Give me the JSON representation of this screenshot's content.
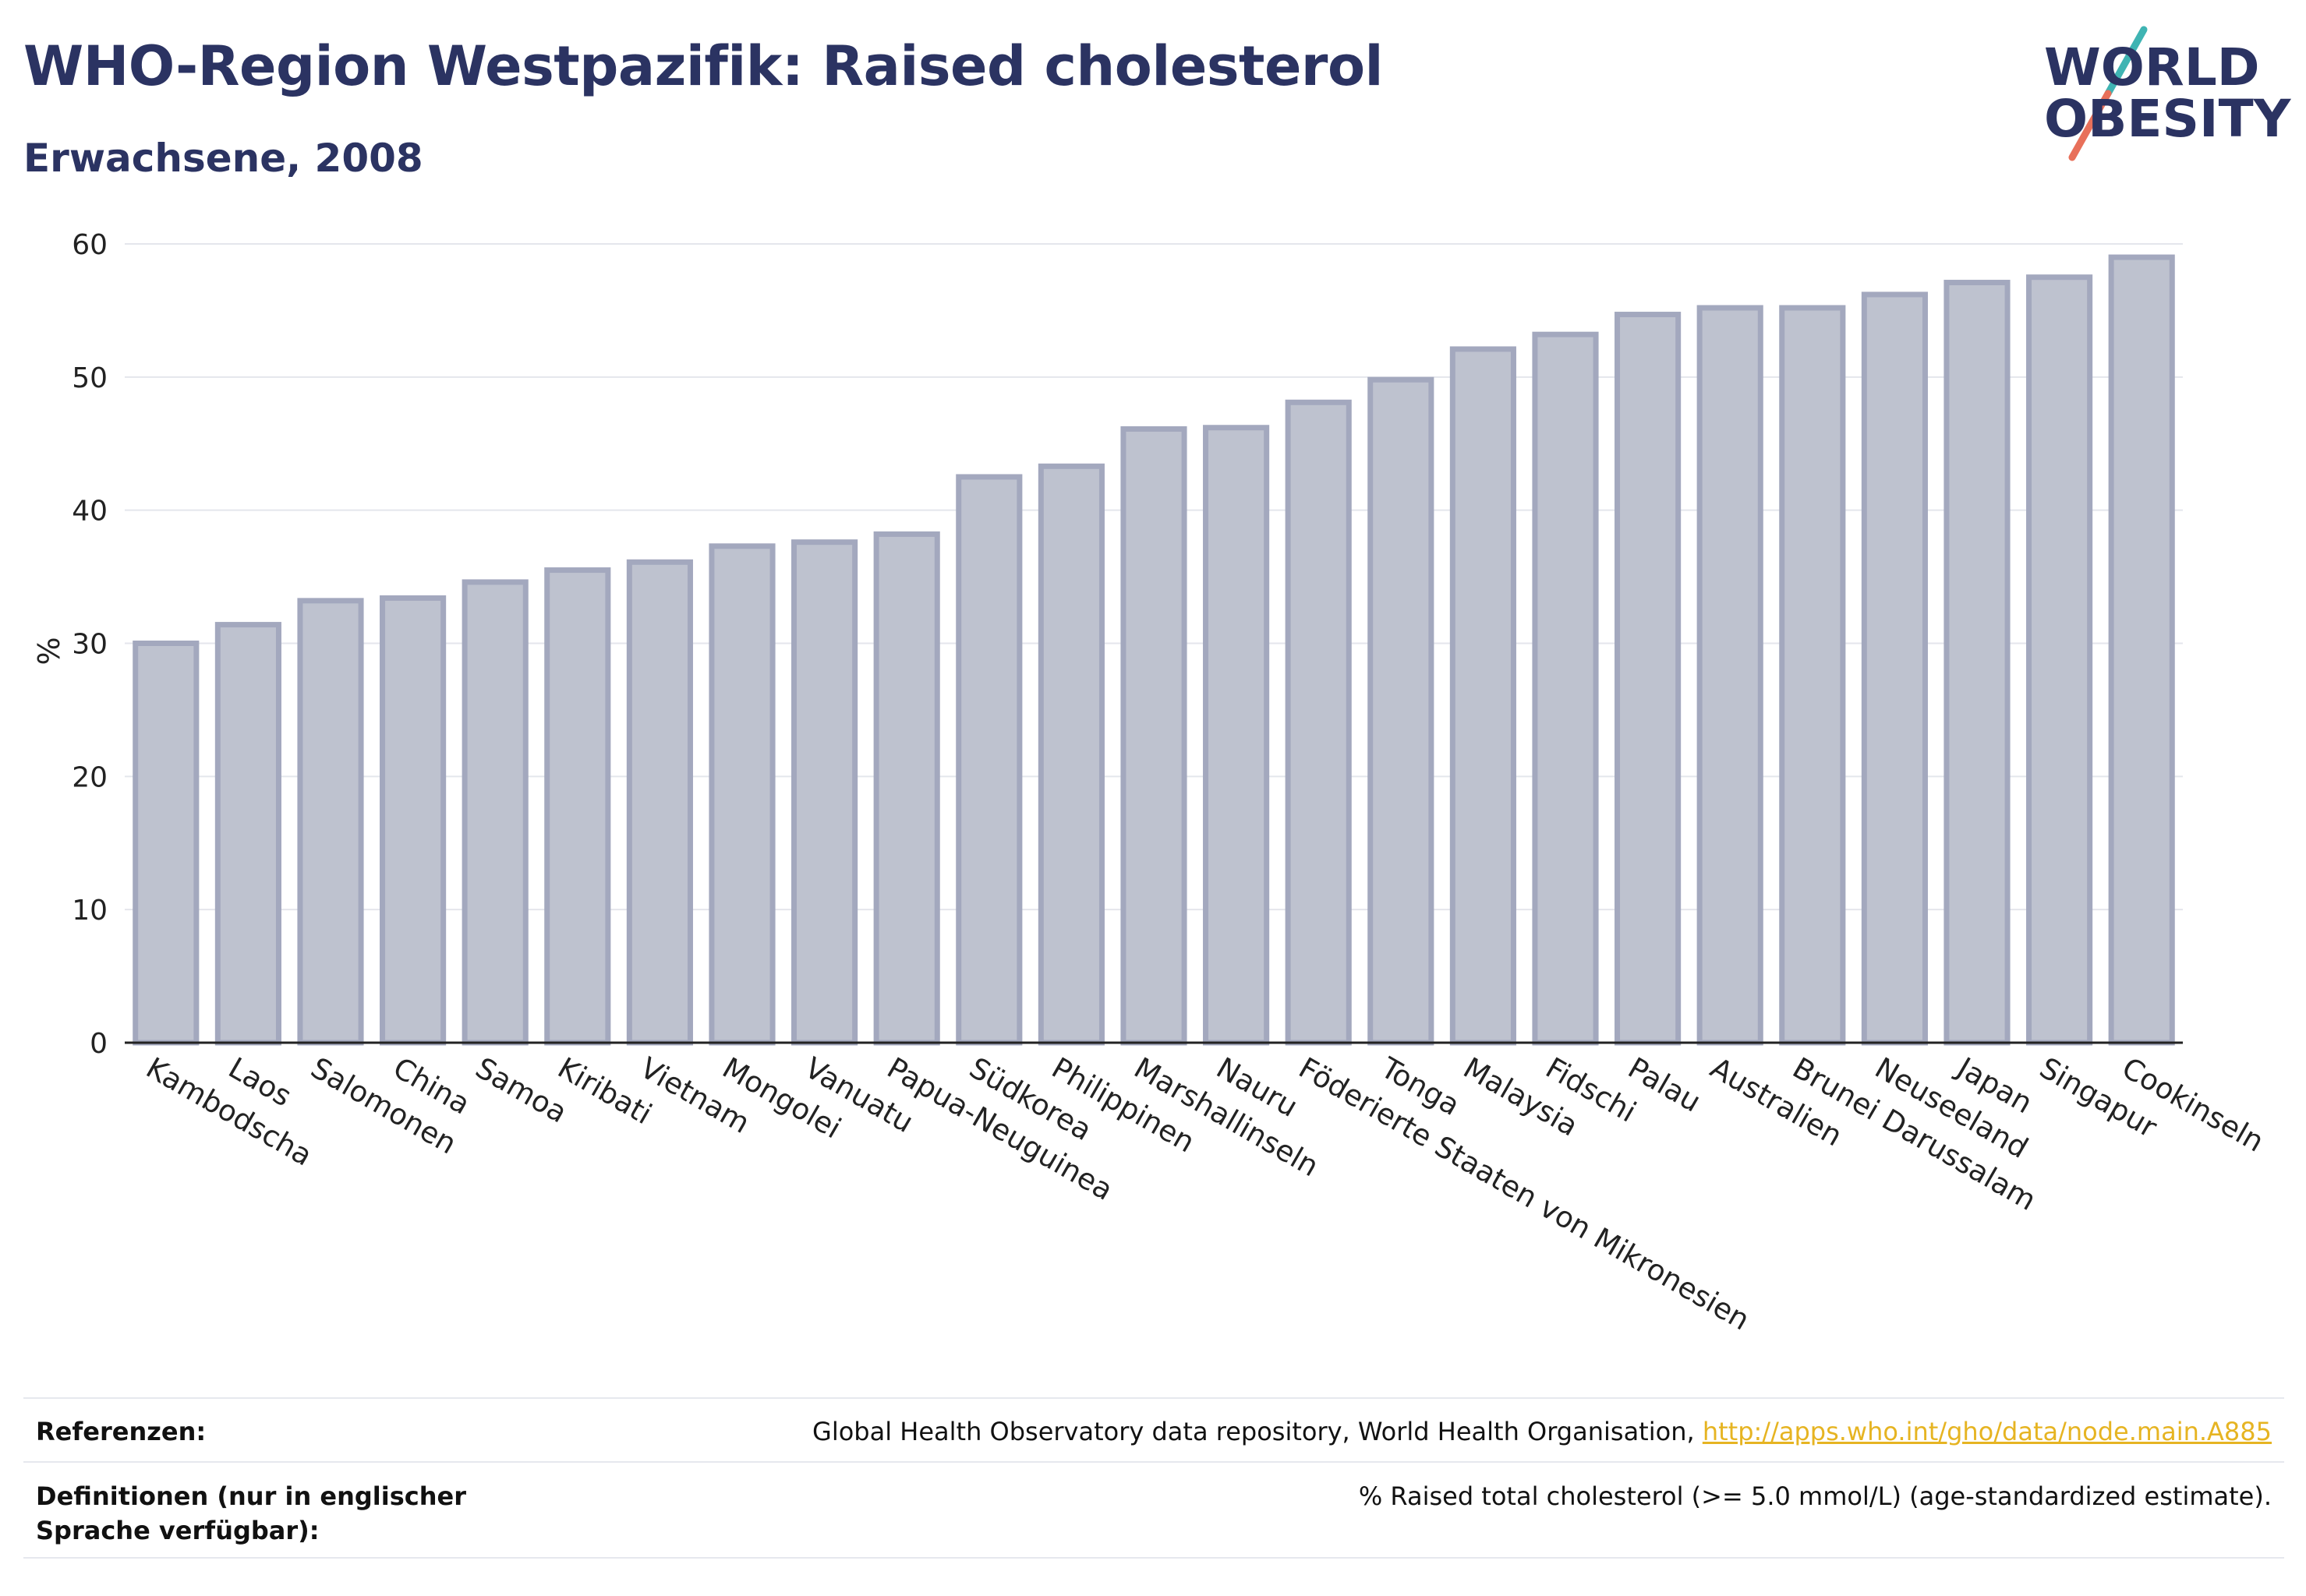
{
  "header": {
    "title": "WHO-Region Westpazifik: Raised cholesterol",
    "subtitle": "Erwachsene, 2008"
  },
  "logo": {
    "line1": "WORLD",
    "line2": "OBESITY",
    "colors": {
      "text": "#2b3362",
      "slash_top": "#3fb4b3",
      "slash_bottom": "#e8705a"
    }
  },
  "chart_data": {
    "type": "bar",
    "title": "",
    "xlabel": "",
    "ylabel": "%",
    "ylim": [
      0,
      60
    ],
    "yticks": [
      0,
      10,
      20,
      30,
      40,
      50,
      60
    ],
    "grid": true,
    "legend": "none",
    "bar_color": "#bec2cf",
    "bar_edge_color": "#a3a8be",
    "categories": [
      "Kambodscha",
      "Laos",
      "Salomonen",
      "China",
      "Samoa",
      "Kiribati",
      "Vietnam",
      "Mongolei",
      "Vanuatu",
      "Papua-Neuguinea",
      "Südkorea",
      "Philippinen",
      "Marshallinseln",
      "Nauru",
      "Föderierte Staaten von Mikronesien",
      "Tonga",
      "Malaysia",
      "Fidschi",
      "Palau",
      "Australien",
      "Brunei Darussalam",
      "Neuseeland",
      "Japan",
      "Singapur",
      "Cookinseln"
    ],
    "values": [
      30.0,
      31.4,
      33.2,
      33.4,
      34.6,
      35.5,
      36.1,
      37.3,
      37.6,
      38.2,
      42.5,
      43.3,
      46.1,
      46.2,
      48.1,
      49.8,
      52.1,
      53.2,
      54.7,
      55.2,
      55.2,
      56.2,
      57.1,
      57.5,
      59.0
    ]
  },
  "footer": {
    "references_label": "Referenzen:",
    "references_text": "Global Health Observatory data repository, World Health Organisation, ",
    "references_link": "http://apps.who.int/gho/data/node.main.A885",
    "definitions_label": "Definitionen (nur in englischer Sprache verfügbar):",
    "definitions_text": "% Raised total cholesterol (>= 5.0 mmol/L) (age-standardized estimate)."
  }
}
